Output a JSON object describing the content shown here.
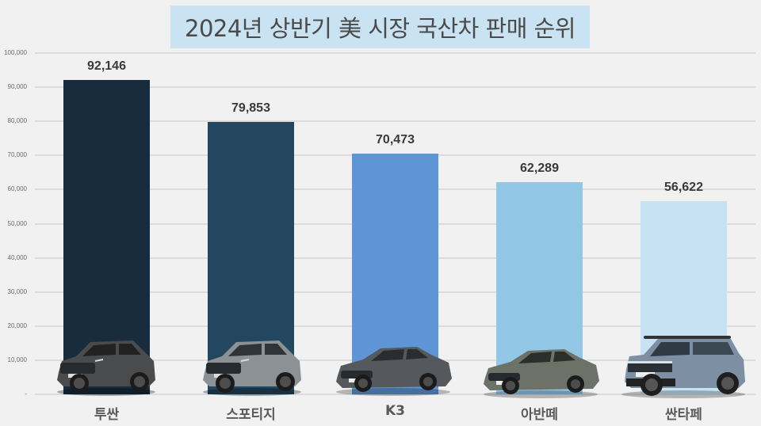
{
  "title": "2024년 상반기 美 시장 국산차 판매 순위",
  "colors": {
    "background": "#f1f1f1",
    "title_bg": "#c9e3f2",
    "gridline": "#dcdcdc",
    "bars": [
      "#182c3d",
      "#23475f",
      "#5e95d6",
      "#93c7e6",
      "#c7e2f2"
    ]
  },
  "y_axis": {
    "ticks": [
      "100,000",
      "90,000",
      "80,000",
      "70,000",
      "60,000",
      "50,000",
      "40,000",
      "30,000",
      "20,000",
      "10,000",
      "-"
    ]
  },
  "bars": [
    {
      "label": "투싼",
      "value_label": "92,146",
      "car_icon": "tucson-suv-icon"
    },
    {
      "label": "스포티지",
      "value_label": "79,853",
      "car_icon": "sportage-suv-icon"
    },
    {
      "label": "K3",
      "value_label": "70,473",
      "car_icon": "k3-sedan-icon"
    },
    {
      "label": "아반떼",
      "value_label": "62,289",
      "car_icon": "avante-sedan-icon"
    },
    {
      "label": "싼타페",
      "value_label": "56,622",
      "car_icon": "santafe-suv-icon"
    }
  ],
  "chart_data": {
    "type": "bar",
    "title": "2024년 상반기 美 시장 국산차 판매 순위",
    "categories": [
      "투싼",
      "스포티지",
      "K3",
      "아반떼",
      "싼타페"
    ],
    "values": [
      92146,
      79853,
      70473,
      62289,
      56622
    ],
    "xlabel": "",
    "ylabel": "",
    "ylim": [
      0,
      100000
    ],
    "yticks": [
      0,
      10000,
      20000,
      30000,
      40000,
      50000,
      60000,
      70000,
      80000,
      90000,
      100000
    ],
    "grid": true,
    "legend": null,
    "data_labels": true
  }
}
